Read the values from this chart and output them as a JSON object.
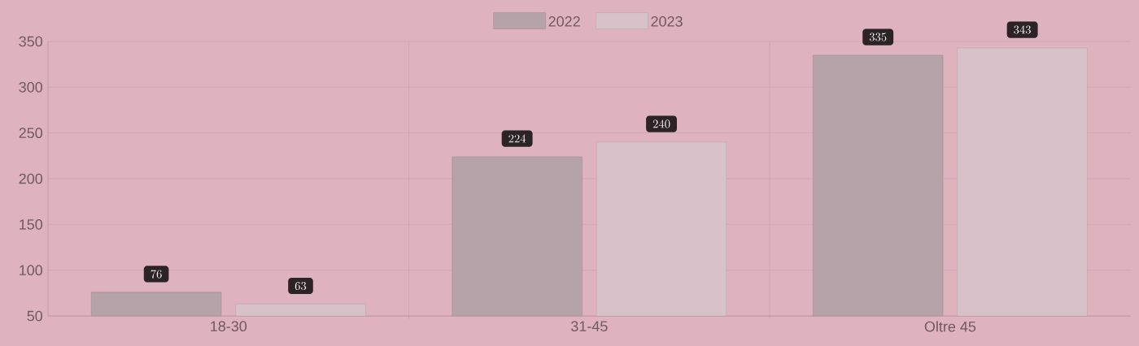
{
  "chart_data": {
    "type": "bar",
    "categories": [
      "18-30",
      "31-45",
      "Oltre 45"
    ],
    "series": [
      {
        "name": "2022",
        "color": "#b6a3a9",
        "values": [
          76,
          224,
          335
        ]
      },
      {
        "name": "2023",
        "color": "#d8c2c9",
        "values": [
          63,
          240,
          343
        ]
      }
    ],
    "ylim": [
      50,
      350
    ],
    "yticks": [
      50,
      100,
      150,
      200,
      250,
      300,
      350
    ],
    "grid": true,
    "legend": "top",
    "data_labels": true
  }
}
